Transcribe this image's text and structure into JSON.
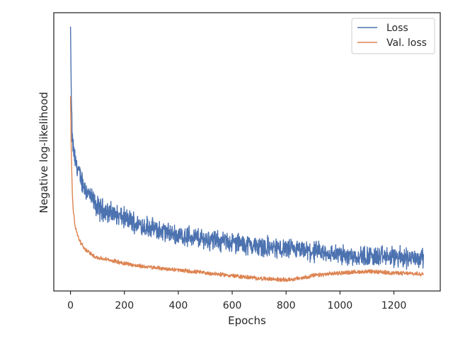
{
  "chart_data": {
    "type": "line",
    "title": "",
    "xlabel": "Epochs",
    "ylabel": "Negative log-likelihood",
    "xlim": [
      -62,
      1372
    ],
    "ylim": [
      0.0,
      1.0
    ],
    "y_tick_labels": "hidden",
    "xticks": [
      0,
      200,
      400,
      600,
      800,
      1000,
      1200
    ],
    "grid": false,
    "legend": {
      "position": "top-right",
      "entries": [
        "Loss",
        "Val. loss"
      ]
    },
    "n_epochs": 1310,
    "series": [
      {
        "name": "Loss",
        "color": "#4c72b0",
        "noise": "high",
        "x": [
          0,
          3,
          6,
          10,
          15,
          20,
          30,
          40,
          50,
          60,
          80,
          100,
          150,
          200,
          250,
          300,
          400,
          500,
          600,
          700,
          800,
          900,
          1000,
          1100,
          1200,
          1310
        ],
        "y": [
          0.95,
          0.7,
          0.55,
          0.52,
          0.48,
          0.46,
          0.43,
          0.4,
          0.38,
          0.36,
          0.33,
          0.3,
          0.28,
          0.26,
          0.24,
          0.225,
          0.2,
          0.185,
          0.175,
          0.16,
          0.15,
          0.14,
          0.13,
          0.125,
          0.12,
          0.12
        ]
      },
      {
        "name": "Val. loss",
        "color": "#dd8452",
        "noise": "low",
        "x": [
          0,
          2,
          4,
          6,
          8,
          10,
          15,
          20,
          30,
          40,
          50,
          60,
          80,
          100,
          150,
          200,
          250,
          300,
          400,
          500,
          600,
          700,
          800,
          850,
          900,
          1000,
          1100,
          1200,
          1310
        ],
        "y": [
          0.7,
          0.55,
          0.45,
          0.38,
          0.33,
          0.29,
          0.25,
          0.22,
          0.19,
          0.17,
          0.155,
          0.145,
          0.13,
          0.12,
          0.11,
          0.1,
          0.09,
          0.085,
          0.075,
          0.065,
          0.055,
          0.045,
          0.04,
          0.045,
          0.055,
          0.065,
          0.07,
          0.065,
          0.06
        ]
      }
    ]
  }
}
